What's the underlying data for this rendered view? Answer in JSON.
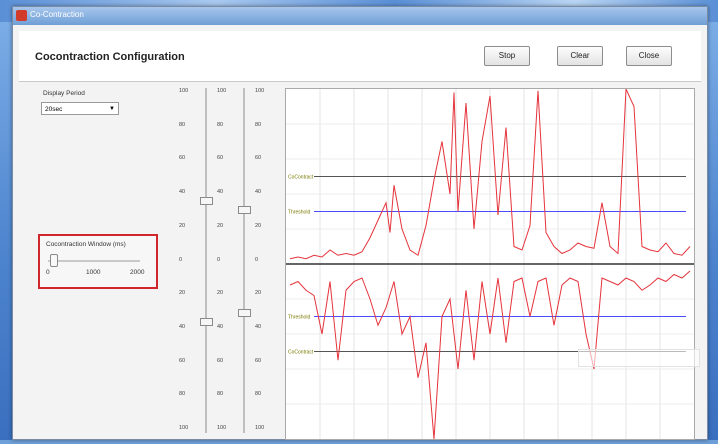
{
  "window": {
    "title": "Co-Contraction"
  },
  "header": {
    "title": "Cocontraction Configuration",
    "buttons": [
      "Stop",
      "Clear",
      "Close"
    ]
  },
  "display_period": {
    "label": "Display Period",
    "value": "20sec"
  },
  "cocontraction_window": {
    "label": "Cocontraction Window (ms)",
    "ticks": [
      "0",
      "1000",
      "2000"
    ],
    "value": 100
  },
  "sliders": {
    "scales": [
      [
        "100",
        "80",
        "60",
        "40",
        "20",
        "0",
        "20",
        "40",
        "60",
        "80",
        "100"
      ],
      [
        "100",
        "80",
        "60",
        "40",
        "20",
        "0",
        "20",
        "40",
        "60",
        "80",
        "100"
      ],
      [
        "100",
        "80",
        "60",
        "40",
        "20",
        "0",
        "20",
        "40",
        "60",
        "80",
        "100"
      ]
    ],
    "upper_slider_value": 35,
    "upper_slider_b_value": 30,
    "lower_slider_value": 35,
    "lower_slider_b_value": 30
  },
  "chart_data": {
    "type": "line",
    "title": "",
    "xlabel": "",
    "ylabel": "",
    "grid": true,
    "ylim": [
      -100,
      100
    ],
    "reference_lines": [
      {
        "label": "CoContract",
        "value": 50,
        "color": "#555555"
      },
      {
        "label": "Threshold",
        "value": 30,
        "color": "#4b4bff"
      },
      {
        "label": "Threshold",
        "value": -30,
        "color": "#4b4bff"
      },
      {
        "label": "CoContract",
        "value": -50,
        "color": "#555555"
      }
    ],
    "series": [
      {
        "color": "#e5333b",
        "x": [
          0,
          2,
          4,
          6,
          8,
          10,
          12,
          14,
          16,
          18,
          20,
          22,
          24,
          25,
          26,
          28,
          30,
          32,
          34,
          36,
          38,
          40,
          41,
          42,
          44,
          46,
          48,
          50,
          52,
          54,
          56,
          58,
          60,
          62,
          64,
          66,
          68,
          70,
          72,
          74,
          76,
          78,
          80,
          82,
          84,
          86,
          88,
          90,
          92,
          94,
          96,
          98,
          100
        ],
        "values": [
          3,
          4,
          3,
          5,
          4,
          8,
          5,
          6,
          5,
          7,
          15,
          25,
          35,
          18,
          45,
          20,
          8,
          5,
          22,
          48,
          70,
          40,
          98,
          30,
          92,
          20,
          70,
          96,
          28,
          78,
          10,
          8,
          22,
          99,
          18,
          10,
          6,
          8,
          12,
          10,
          9,
          35,
          10,
          6,
          100,
          90,
          10,
          8,
          7,
          12,
          6,
          5,
          10
        ]
      },
      {
        "color": "#e5333b",
        "x": [
          0,
          2,
          4,
          6,
          8,
          10,
          12,
          14,
          16,
          18,
          20,
          22,
          24,
          26,
          28,
          30,
          32,
          34,
          36,
          38,
          40,
          42,
          44,
          46,
          48,
          50,
          52,
          54,
          56,
          58,
          60,
          62,
          64,
          66,
          68,
          70,
          72,
          74,
          76,
          78,
          80,
          82,
          84,
          86,
          88,
          90,
          92,
          94,
          96,
          98,
          100
        ],
        "values": [
          -12,
          -10,
          -15,
          -18,
          -40,
          -10,
          -55,
          -15,
          -10,
          -8,
          -20,
          -35,
          -25,
          -10,
          -40,
          -30,
          -65,
          -45,
          -100,
          -30,
          -20,
          -60,
          -15,
          -55,
          -10,
          -40,
          -8,
          -45,
          -10,
          -8,
          -30,
          -10,
          -8,
          -35,
          -12,
          -8,
          -10,
          -40,
          -60,
          -8,
          -10,
          -12,
          -8,
          -10,
          -15,
          -12,
          -8,
          -10,
          -6,
          -8,
          -4
        ]
      }
    ]
  }
}
